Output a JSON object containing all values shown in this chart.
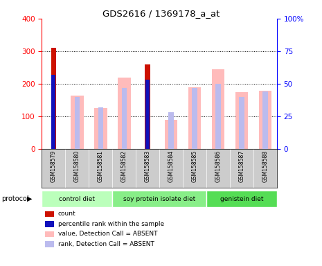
{
  "title": "GDS2616 / 1369178_a_at",
  "samples": [
    "GSM158579",
    "GSM158580",
    "GSM158581",
    "GSM158582",
    "GSM158583",
    "GSM158584",
    "GSM158585",
    "GSM158586",
    "GSM158587",
    "GSM158588"
  ],
  "count_values": [
    310,
    null,
    null,
    null,
    260,
    null,
    null,
    null,
    null,
    null
  ],
  "rank_values_pct": [
    57,
    null,
    null,
    null,
    53,
    null,
    null,
    null,
    null,
    null
  ],
  "absent_value_values": [
    null,
    163,
    126,
    220,
    null,
    90,
    190,
    245,
    174,
    178
  ],
  "absent_rank_values_pct": [
    null,
    40,
    32,
    47,
    null,
    28,
    47,
    50,
    40,
    44
  ],
  "ylim_left": [
    0,
    400
  ],
  "ylim_right": [
    0,
    100
  ],
  "left_ticks": [
    0,
    100,
    200,
    300,
    400
  ],
  "right_ticks": [
    0,
    25,
    50,
    75,
    100
  ],
  "right_tick_labels": [
    "0",
    "25",
    "50",
    "75",
    "100%"
  ],
  "groups": [
    {
      "label": "control diet",
      "start": 0,
      "end": 2,
      "color": "#bbffbb"
    },
    {
      "label": "soy protein isolate diet",
      "start": 3,
      "end": 6,
      "color": "#88ee88"
    },
    {
      "label": "genistein diet",
      "start": 7,
      "end": 9,
      "color": "#55dd55"
    }
  ],
  "count_color": "#cc1100",
  "rank_color": "#1111bb",
  "absent_value_color": "#ffbbbb",
  "absent_rank_color": "#bbbbee",
  "sample_bg_color": "#cccccc",
  "plot_bg": "#ffffff"
}
